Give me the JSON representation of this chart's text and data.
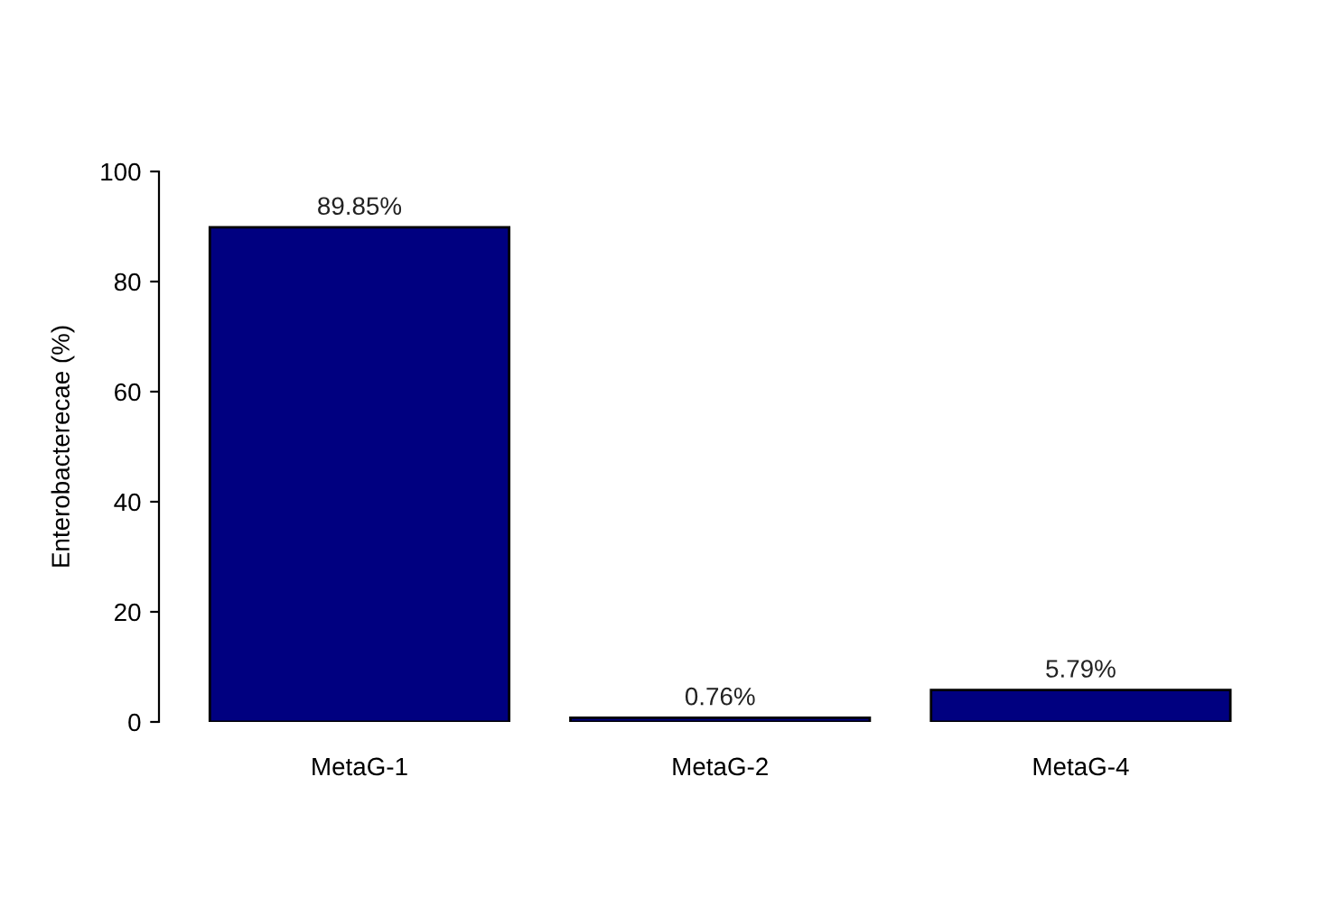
{
  "chart_data": {
    "type": "bar",
    "ylabel": "Enterobacterecae (%)",
    "categories": [
      "MetaG-1",
      "MetaG-2",
      "MetaG-4"
    ],
    "values": [
      89.85,
      0.76,
      5.79
    ],
    "value_labels": [
      "89.85%",
      "0.76%",
      "5.79%"
    ],
    "color": "#000080",
    "ylim": [
      0,
      100
    ],
    "yticks": [
      0,
      20,
      40,
      60,
      80,
      100
    ],
    "grid": false,
    "legend": false
  }
}
